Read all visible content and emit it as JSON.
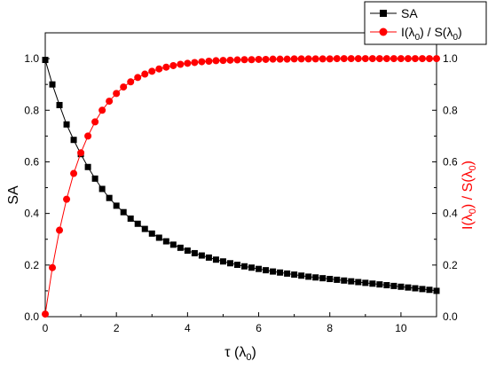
{
  "chart_data": {
    "type": "line",
    "title": "",
    "xlabel": "τ (λ",
    "xlabel_sub": "0",
    "xlabel_end": ")",
    "ylabel": "SA",
    "y2label": "I(λ₀) / S(λ₀)",
    "xlim": [
      0,
      11
    ],
    "ylim": [
      0,
      1.1
    ],
    "y2lim": [
      0,
      1.1
    ],
    "xticks": [
      0,
      2,
      4,
      6,
      8,
      10
    ],
    "xtick_labels": [
      "0",
      "2",
      "4",
      "6",
      "8",
      "10"
    ],
    "yticks": [
      0.0,
      0.2,
      0.4,
      0.6,
      0.8,
      1.0
    ],
    "ytick_labels": [
      "0.0",
      "0.2",
      "0.4",
      "0.6",
      "0.8",
      "1.0"
    ],
    "y2tick_labels": [
      "0.0",
      "0.2",
      "0.4",
      "0.6",
      "0.8",
      "1.0"
    ],
    "grid": false,
    "legend_position": "top-right, outside plot",
    "series": [
      {
        "name": "SA",
        "axis": "left",
        "color": "#000000",
        "marker": "square",
        "x": [
          0.0,
          0.2,
          0.4,
          0.6,
          0.8,
          1.0,
          1.2,
          1.4,
          1.6,
          1.8,
          2.0,
          2.2,
          2.4,
          2.6,
          2.8,
          3.0,
          3.2,
          3.4,
          3.6,
          3.8,
          4.0,
          4.2,
          4.4,
          4.6,
          4.8,
          5.0,
          5.2,
          5.4,
          5.6,
          5.8,
          6.0,
          6.2,
          6.4,
          6.6,
          6.8,
          7.0,
          7.2,
          7.4,
          7.6,
          7.8,
          8.0,
          8.2,
          8.4,
          8.6,
          8.8,
          9.0,
          9.2,
          9.4,
          9.6,
          9.8,
          10.0,
          10.2,
          10.4,
          10.6,
          10.8,
          11.0
        ],
        "values": [
          0.995,
          0.9,
          0.82,
          0.745,
          0.685,
          0.63,
          0.58,
          0.535,
          0.495,
          0.46,
          0.43,
          0.405,
          0.38,
          0.36,
          0.34,
          0.322,
          0.306,
          0.292,
          0.279,
          0.267,
          0.256,
          0.246,
          0.237,
          0.229,
          0.221,
          0.214,
          0.207,
          0.201,
          0.195,
          0.19,
          0.185,
          0.18,
          0.175,
          0.171,
          0.167,
          0.163,
          0.159,
          0.155,
          0.152,
          0.149,
          0.146,
          0.143,
          0.14,
          0.137,
          0.134,
          0.131,
          0.128,
          0.125,
          0.122,
          0.119,
          0.116,
          0.113,
          0.11,
          0.107,
          0.104,
          0.1
        ]
      },
      {
        "name": "I(λ₀) / S(λ₀)",
        "axis": "right",
        "color": "#ff0000",
        "marker": "circle",
        "x": [
          0.0,
          0.2,
          0.4,
          0.6,
          0.8,
          1.0,
          1.2,
          1.4,
          1.6,
          1.8,
          2.0,
          2.2,
          2.4,
          2.6,
          2.8,
          3.0,
          3.2,
          3.4,
          3.6,
          3.8,
          4.0,
          4.2,
          4.4,
          4.6,
          4.8,
          5.0,
          5.2,
          5.4,
          5.6,
          5.8,
          6.0,
          6.2,
          6.4,
          6.6,
          6.8,
          7.0,
          7.2,
          7.4,
          7.6,
          7.8,
          8.0,
          8.2,
          8.4,
          8.6,
          8.8,
          9.0,
          9.2,
          9.4,
          9.6,
          9.8,
          10.0,
          10.2,
          10.4,
          10.6,
          10.8,
          11.0
        ],
        "values": [
          0.01,
          0.19,
          0.335,
          0.455,
          0.555,
          0.635,
          0.7,
          0.755,
          0.8,
          0.835,
          0.865,
          0.89,
          0.91,
          0.927,
          0.94,
          0.951,
          0.96,
          0.967,
          0.973,
          0.978,
          0.982,
          0.985,
          0.988,
          0.99,
          0.992,
          0.993,
          0.994,
          0.995,
          0.996,
          0.996,
          0.997,
          0.997,
          0.998,
          0.998,
          0.998,
          0.999,
          0.999,
          0.999,
          0.999,
          0.999,
          0.999,
          1.0,
          1.0,
          1.0,
          1.0,
          1.0,
          1.0,
          1.0,
          1.0,
          1.0,
          1.0,
          1.0,
          1.0,
          1.0,
          1.0,
          1.0
        ]
      }
    ],
    "legend": [
      {
        "label": "SA",
        "marker": "square",
        "color": "#000000"
      },
      {
        "label": "I(λ",
        "sub": "0",
        "label_mid": ") / S(λ",
        "sub2": "0",
        "label_end": ")",
        "marker": "circle",
        "color": "#ff0000"
      }
    ]
  }
}
